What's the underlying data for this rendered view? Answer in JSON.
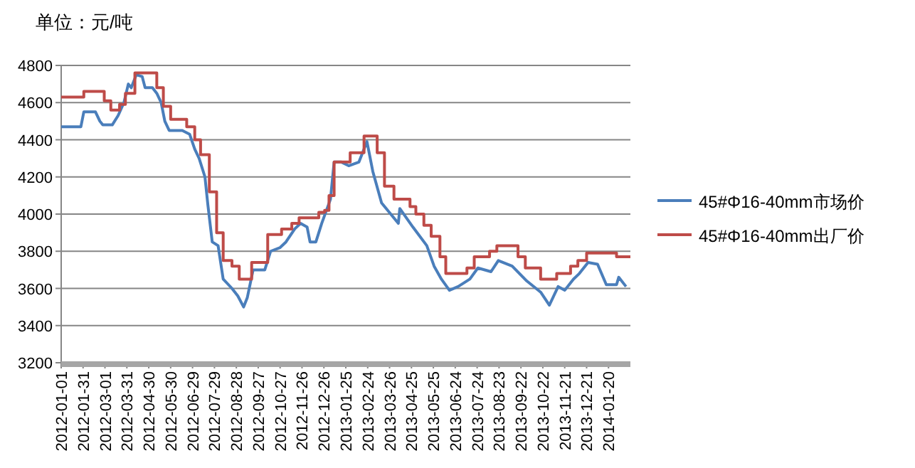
{
  "chart_data": {
    "type": "line",
    "title": "单位：元/吨",
    "xlim": [
      "2012-01-01",
      "2014-02-19"
    ],
    "xticks": [
      "2012-01-01",
      "2012-01-31",
      "2012-03-01",
      "2012-03-31",
      "2012-04-30",
      "2012-05-30",
      "2012-06-29",
      "2012-07-29",
      "2012-08-28",
      "2012-09-27",
      "2012-10-27",
      "2012-11-26",
      "2012-12-26",
      "2013-01-25",
      "2013-02-24",
      "2013-03-26",
      "2013-04-25",
      "2013-05-25",
      "2013-06-24",
      "2013-07-24",
      "2013-08-23",
      "2013-09-22",
      "2013-10-22",
      "2013-11-21",
      "2013-12-21",
      "2014-01-20"
    ],
    "ylim": [
      3200,
      4800
    ],
    "yticks": [
      3200,
      3400,
      3600,
      3800,
      4000,
      4200,
      4400,
      4600,
      4800
    ],
    "grid": "y",
    "legend": "right",
    "marker": "none",
    "series": [
      {
        "name": "45#Φ16-40mm市场价",
        "type": "line",
        "color": "#4a7ebb",
        "x": [
          "2012-01-01",
          "2012-01-28",
          "2012-02-01",
          "2012-02-17",
          "2012-02-23",
          "2012-02-27",
          "2012-03-11",
          "2012-03-19",
          "2012-03-27",
          "2012-04-02",
          "2012-04-06",
          "2012-04-13",
          "2012-04-21",
          "2012-04-25",
          "2012-05-05",
          "2012-05-11",
          "2012-05-17",
          "2012-05-22",
          "2012-05-28",
          "2012-06-15",
          "2012-06-25",
          "2012-07-02",
          "2012-07-08",
          "2012-07-16",
          "2012-07-20",
          "2012-07-26",
          "2012-08-03",
          "2012-08-10",
          "2012-08-22",
          "2012-08-30",
          "2012-09-07",
          "2012-09-12",
          "2012-09-20",
          "2012-10-06",
          "2012-10-14",
          "2012-10-27",
          "2012-11-04",
          "2012-11-16",
          "2012-11-24",
          "2012-12-03",
          "2012-12-07",
          "2012-12-15",
          "2012-12-23",
          "2013-01-04",
          "2013-01-09",
          "2013-01-19",
          "2013-01-29",
          "2013-02-12",
          "2013-02-23",
          "2013-03-03",
          "2013-03-15",
          "2013-04-07",
          "2013-04-09",
          "2013-04-27",
          "2013-05-16",
          "2013-05-26",
          "2013-06-05",
          "2013-06-16",
          "2013-06-28",
          "2013-07-14",
          "2013-07-25",
          "2013-08-12",
          "2013-08-22",
          "2013-09-10",
          "2013-09-30",
          "2013-10-19",
          "2013-10-31",
          "2013-11-12",
          "2013-11-21",
          "2013-12-03",
          "2013-12-11",
          "2013-12-23",
          "2014-01-05",
          "2014-01-17",
          "2014-01-31",
          "2014-02-03",
          "2014-02-13"
        ],
        "values": [
          4470,
          4470,
          4550,
          4550,
          4500,
          4480,
          4480,
          4530,
          4600,
          4700,
          4680,
          4750,
          4740,
          4680,
          4680,
          4650,
          4600,
          4500,
          4450,
          4450,
          4430,
          4350,
          4300,
          4200,
          4050,
          3850,
          3830,
          3650,
          3600,
          3560,
          3500,
          3550,
          3700,
          3700,
          3800,
          3820,
          3850,
          3920,
          3950,
          3930,
          3850,
          3850,
          3950,
          4080,
          4280,
          4280,
          4260,
          4280,
          4390,
          4230,
          4060,
          3950,
          4030,
          3930,
          3830,
          3720,
          3650,
          3590,
          3610,
          3650,
          3710,
          3690,
          3750,
          3720,
          3640,
          3580,
          3510,
          3610,
          3590,
          3650,
          3680,
          3740,
          3730,
          3620,
          3620,
          3660,
          3610
        ]
      },
      {
        "name": "45#Φ16-40mm出厂价",
        "type": "step",
        "color": "#be4b48",
        "x": [
          "2012-01-01",
          "2012-02-01",
          "2012-02-29",
          "2012-03-09",
          "2012-03-21",
          "2012-03-29",
          "2012-04-11",
          "2012-05-11",
          "2012-05-20",
          "2012-05-30",
          "2012-06-21",
          "2012-07-02",
          "2012-07-10",
          "2012-07-22",
          "2012-08-01",
          "2012-08-10",
          "2012-08-22",
          "2012-09-01",
          "2012-09-18",
          "2012-10-10",
          "2012-10-29",
          "2012-11-12",
          "2012-11-22",
          "2012-12-19",
          "2012-12-27",
          "2013-01-02",
          "2013-01-09",
          "2013-01-31",
          "2013-02-19",
          "2013-03-09",
          "2013-03-19",
          "2013-04-01",
          "2013-04-23",
          "2013-05-01",
          "2013-05-12",
          "2013-05-22",
          "2013-06-03",
          "2013-06-11",
          "2013-07-10",
          "2013-07-20",
          "2013-08-10",
          "2013-08-20",
          "2013-09-18",
          "2013-09-28",
          "2013-10-19",
          "2013-11-10",
          "2013-11-29",
          "2013-12-09",
          "2013-12-21",
          "2014-01-31",
          "2014-02-19"
        ],
        "values": [
          4630,
          4660,
          4610,
          4560,
          4590,
          4650,
          4760,
          4680,
          4580,
          4510,
          4470,
          4400,
          4320,
          4120,
          3900,
          3750,
          3720,
          3650,
          3740,
          3890,
          3920,
          3950,
          3980,
          4010,
          4020,
          4100,
          4280,
          4330,
          4420,
          4330,
          4150,
          4080,
          4040,
          4000,
          3940,
          3880,
          3770,
          3680,
          3710,
          3770,
          3800,
          3830,
          3770,
          3710,
          3650,
          3680,
          3720,
          3750,
          3790,
          3770,
          3770
        ]
      }
    ]
  }
}
